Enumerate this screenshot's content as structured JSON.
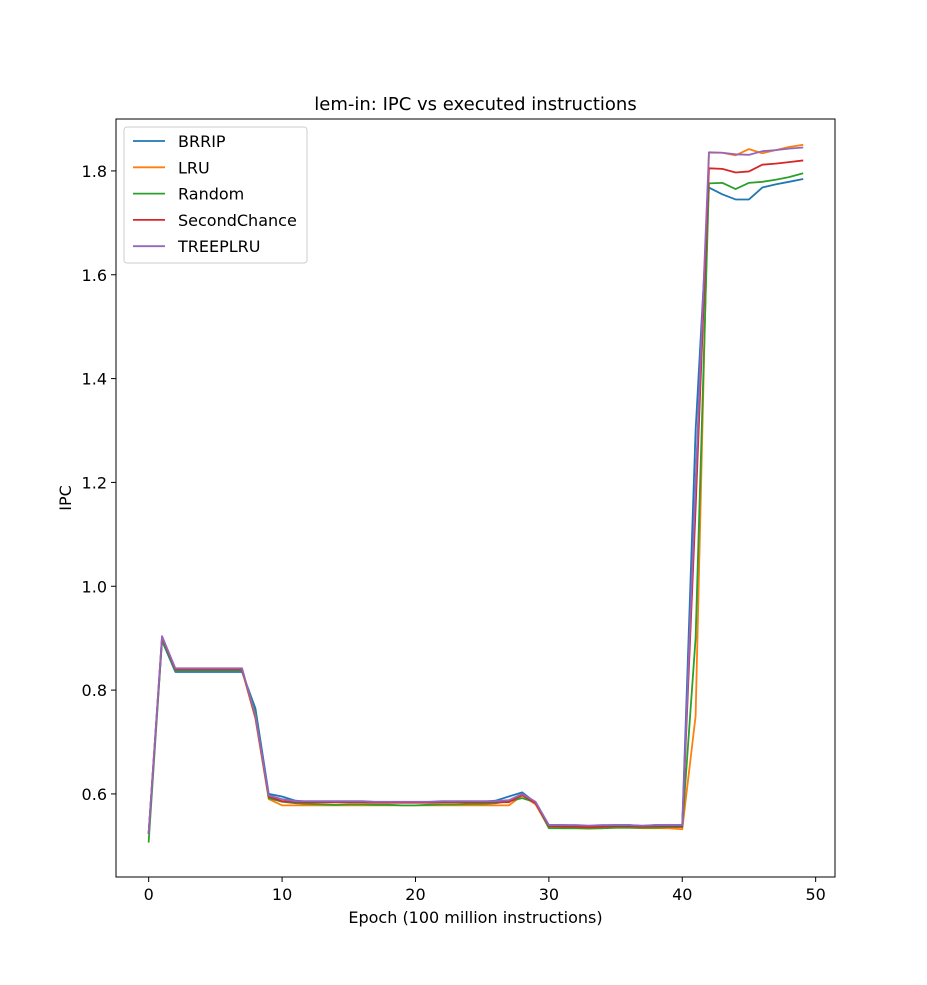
{
  "chart_data": {
    "type": "line",
    "title": "lem-in: IPC vs executed instructions",
    "xlabel": "Epoch (100 million instructions)",
    "ylabel": "IPC",
    "xlim": [
      -2.45,
      51.45
    ],
    "ylim": [
      0.44,
      1.9
    ],
    "xticks": [
      0,
      10,
      20,
      30,
      40,
      50
    ],
    "yticks": [
      0.6,
      0.8,
      1.0,
      1.2,
      1.4,
      1.6,
      1.8
    ],
    "xtick_labels": [
      "0",
      "10",
      "20",
      "30",
      "40",
      "50"
    ],
    "ytick_labels": [
      "0.6",
      "0.8",
      "1.0",
      "1.2",
      "1.4",
      "1.6",
      "1.8"
    ],
    "grid": false,
    "legend_position": "top-left",
    "x": [
      0,
      1,
      2,
      3,
      4,
      5,
      6,
      7,
      8,
      9,
      10,
      11,
      12,
      13,
      14,
      15,
      16,
      17,
      18,
      19,
      20,
      21,
      22,
      23,
      24,
      25,
      26,
      27,
      28,
      29,
      30,
      31,
      32,
      33,
      34,
      35,
      36,
      37,
      38,
      39,
      40,
      41,
      42,
      43,
      44,
      45,
      46,
      47,
      48,
      49
    ],
    "series": [
      {
        "name": "BRRIP",
        "color": "#1f77b4",
        "values": [
          0.525,
          0.895,
          0.835,
          0.835,
          0.835,
          0.835,
          0.835,
          0.835,
          0.765,
          0.6,
          0.595,
          0.587,
          0.585,
          0.585,
          0.585,
          0.585,
          0.585,
          0.584,
          0.584,
          0.584,
          0.584,
          0.584,
          0.585,
          0.585,
          0.585,
          0.585,
          0.587,
          0.595,
          0.603,
          0.583,
          0.54,
          0.54,
          0.539,
          0.538,
          0.539,
          0.54,
          0.54,
          0.538,
          0.54,
          0.54,
          0.54,
          1.3,
          1.768,
          1.755,
          1.745,
          1.745,
          1.768,
          1.774,
          1.779,
          1.784
        ]
      },
      {
        "name": "LRU",
        "color": "#ff7f0e",
        "values": [
          0.525,
          0.9,
          0.838,
          0.838,
          0.838,
          0.838,
          0.838,
          0.838,
          0.745,
          0.59,
          0.578,
          0.578,
          0.578,
          0.578,
          0.578,
          0.578,
          0.578,
          0.578,
          0.578,
          0.578,
          0.578,
          0.578,
          0.578,
          0.578,
          0.578,
          0.578,
          0.578,
          0.578,
          0.597,
          0.58,
          0.535,
          0.534,
          0.534,
          0.533,
          0.534,
          0.535,
          0.535,
          0.534,
          0.534,
          0.534,
          0.532,
          0.75,
          1.835,
          1.835,
          1.83,
          1.842,
          1.834,
          1.84,
          1.846,
          1.85
        ]
      },
      {
        "name": "Random",
        "color": "#2ca02c",
        "values": [
          0.508,
          0.897,
          0.838,
          0.838,
          0.838,
          0.838,
          0.838,
          0.838,
          0.755,
          0.592,
          0.585,
          0.582,
          0.581,
          0.58,
          0.579,
          0.58,
          0.58,
          0.579,
          0.579,
          0.578,
          0.578,
          0.579,
          0.58,
          0.58,
          0.581,
          0.581,
          0.582,
          0.586,
          0.592,
          0.584,
          0.534,
          0.534,
          0.534,
          0.534,
          0.534,
          0.535,
          0.535,
          0.535,
          0.535,
          0.536,
          0.536,
          0.9,
          1.776,
          1.777,
          1.765,
          1.777,
          1.779,
          1.783,
          1.788,
          1.795
        ]
      },
      {
        "name": "SecondChance",
        "color": "#d62728",
        "values": [
          0.525,
          0.902,
          0.84,
          0.84,
          0.84,
          0.84,
          0.84,
          0.84,
          0.748,
          0.595,
          0.586,
          0.584,
          0.584,
          0.584,
          0.584,
          0.584,
          0.584,
          0.583,
          0.583,
          0.583,
          0.583,
          0.583,
          0.584,
          0.584,
          0.584,
          0.584,
          0.584,
          0.584,
          0.598,
          0.582,
          0.538,
          0.537,
          0.537,
          0.536,
          0.537,
          0.538,
          0.538,
          0.537,
          0.538,
          0.538,
          0.538,
          1.15,
          1.805,
          1.804,
          1.797,
          1.799,
          1.812,
          1.814,
          1.817,
          1.82
        ]
      },
      {
        "name": "TREEPLRU",
        "color": "#9467bd",
        "values": [
          0.525,
          0.904,
          0.842,
          0.842,
          0.842,
          0.842,
          0.842,
          0.842,
          0.75,
          0.597,
          0.59,
          0.586,
          0.586,
          0.586,
          0.586,
          0.586,
          0.586,
          0.585,
          0.585,
          0.585,
          0.585,
          0.585,
          0.586,
          0.586,
          0.586,
          0.586,
          0.586,
          0.588,
          0.6,
          0.585,
          0.54,
          0.54,
          0.54,
          0.539,
          0.54,
          0.54,
          0.54,
          0.539,
          0.54,
          0.54,
          0.54,
          1.2,
          1.836,
          1.835,
          1.832,
          1.831,
          1.838,
          1.84,
          1.843,
          1.845
        ]
      }
    ]
  }
}
